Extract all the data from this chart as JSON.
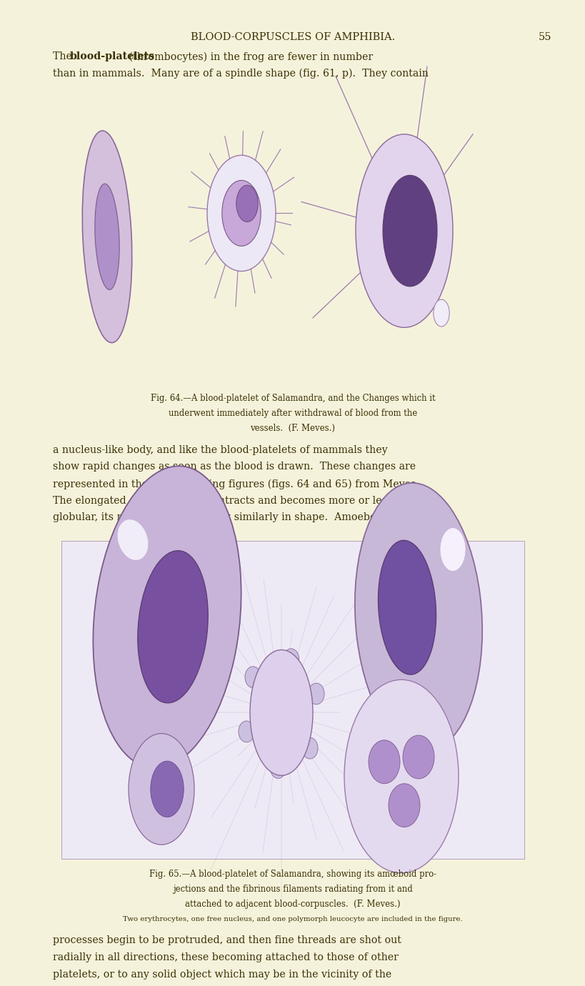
{
  "page_bg": "#f5f2dc",
  "figsize": [
    8.0,
    13.62
  ],
  "dpi": 100,
  "header_title": "BLOOD-CORPUSCLES OF AMPHIBIA.",
  "header_page": "55",
  "para1_line1_a": "The ",
  "para1_line1_b": "blood-platelets",
  "para1_line1_c": " (thrombocytes) in the frog are fewer in number",
  "para1_line2": "than in mammals.  Many are of a spindle shape (fig. 61, p).  They contain",
  "fig1_caption_line1": "Fig. 64.—A blood-platelet of Salamandra, and the Changes which it",
  "fig1_caption_line2": "underwent immediately after withdrawal of blood from the",
  "fig1_caption_line3": "vessels.  (F. Meves.)",
  "para2_lines": [
    "a nucleus-like body, and like the blood-platelets of mammals they",
    "show rapid changes as soon as the blood is drawn.  These changes are",
    "represented in the accompanying figures (figs. 64 and 65) from Meves.",
    "The elongated corpuscle first contracts and becomes more or less",
    "globular, its nucleus also changing similarly in shape.  Amoeboid"
  ],
  "fig2_caption_line1": "Fig. 65.—A blood-platelet of Salamandra, showing its amœboid pro-",
  "fig2_caption_line2": "jections and the fibrinous filaments radiating from it and",
  "fig2_caption_line3": "attached to adjacent blood-corpuscles.  (F. Meves.)",
  "fig2_caption_line4": "Two erythrocytes, one free nucleus, and one polymorph leucocyte are included in the figure.",
  "para3_lines": [
    "processes begin to be protruded, and then fine threads are shot out",
    "radially in all directions, these becoming attached to those of other",
    "platelets, or to any solid object which may be in the vicinity of the"
  ],
  "text_color": "#3a3000",
  "caption_color": "#3a3000"
}
